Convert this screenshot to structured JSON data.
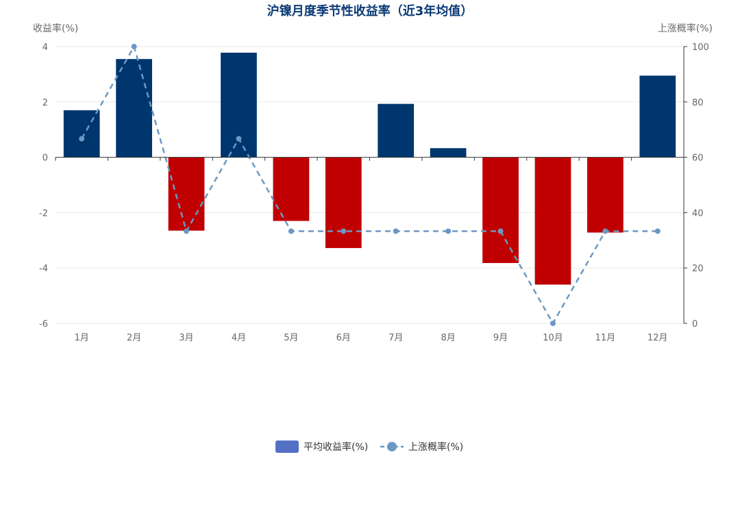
{
  "chart_data": {
    "type": "bar",
    "title": "沪镍月度季节性收益率（近3年均值）",
    "categories": [
      "1月",
      "2月",
      "3月",
      "4月",
      "5月",
      "6月",
      "7月",
      "8月",
      "9月",
      "10月",
      "11月",
      "12月"
    ],
    "y_left": {
      "label": "收益率(%)",
      "range": [
        -6,
        4
      ],
      "ticks": [
        "-6",
        "-4",
        "-2",
        "0",
        "2",
        "4"
      ]
    },
    "y_right": {
      "label": "上涨概率(%)",
      "range": [
        0,
        100
      ],
      "ticks": [
        "0",
        "20",
        "40",
        "60",
        "80",
        "100"
      ]
    },
    "series": [
      {
        "name": "平均收益率(%)",
        "type": "bar",
        "axis": "left",
        "values": [
          1.7,
          3.55,
          -2.65,
          3.78,
          -2.3,
          -3.28,
          1.93,
          0.33,
          -3.82,
          -4.6,
          -2.72,
          2.95
        ],
        "positive_color": "#00366e",
        "negative_color": "#c00000"
      },
      {
        "name": "上涨概率(%)",
        "type": "line",
        "axis": "right",
        "values": [
          66.7,
          100,
          33.3,
          66.7,
          33.3,
          33.3,
          33.3,
          33.3,
          33.3,
          0,
          33.3,
          33.3
        ],
        "color": "#6b98c4",
        "style": "dashed"
      }
    ],
    "legend": {
      "position": "bottom",
      "items": [
        {
          "label": "平均收益率(%)",
          "color": "#5470c6"
        },
        {
          "label": "上涨概率(%)",
          "color": "#6b98c4"
        }
      ]
    },
    "grid": true
  }
}
